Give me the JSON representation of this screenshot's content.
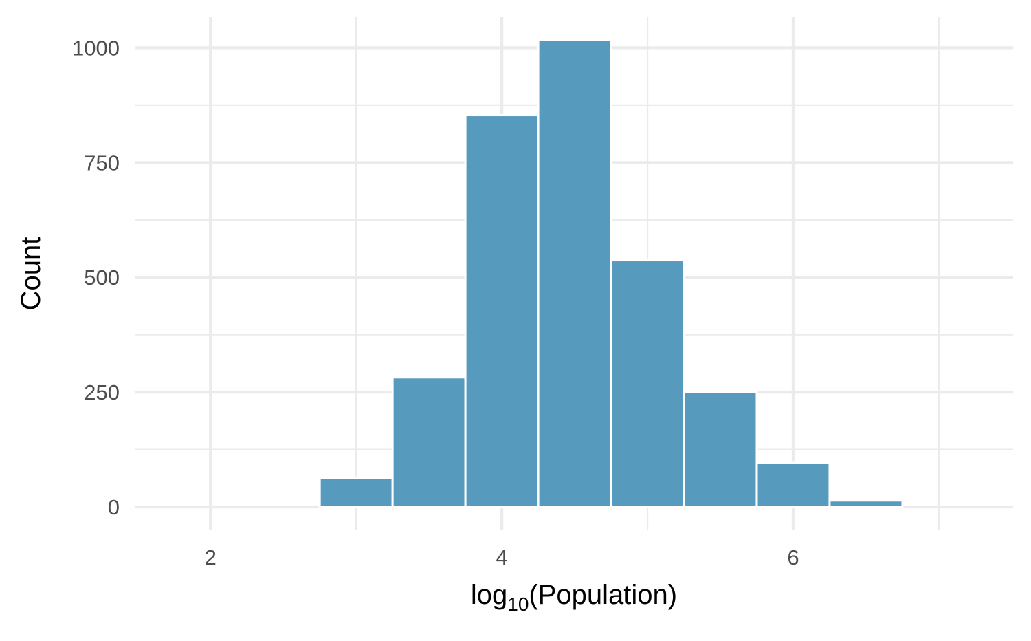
{
  "chart_data": {
    "type": "bar",
    "title": "",
    "xlabel": {
      "base": "log",
      "subscript": "10",
      "rest": "(Population)"
    },
    "ylabel": "Count",
    "bin_width": 0.5,
    "bins": [
      {
        "x_start": 1.75,
        "x_end": 2.25,
        "count": 0
      },
      {
        "x_start": 2.25,
        "x_end": 2.75,
        "count": 0
      },
      {
        "x_start": 2.75,
        "x_end": 3.25,
        "count": 63
      },
      {
        "x_start": 3.25,
        "x_end": 3.75,
        "count": 282
      },
      {
        "x_start": 3.75,
        "x_end": 4.25,
        "count": 853
      },
      {
        "x_start": 4.25,
        "x_end": 4.75,
        "count": 1017
      },
      {
        "x_start": 4.75,
        "x_end": 5.25,
        "count": 537
      },
      {
        "x_start": 5.25,
        "x_end": 5.75,
        "count": 250
      },
      {
        "x_start": 5.75,
        "x_end": 6.25,
        "count": 96
      },
      {
        "x_start": 6.25,
        "x_end": 6.75,
        "count": 14
      },
      {
        "x_start": 6.75,
        "x_end": 7.25,
        "count": 0
      }
    ],
    "xlim": [
      1.48,
      7.51
    ],
    "ylim": [
      -50.8,
      1068
    ],
    "x_ticks": [
      {
        "value": 2,
        "label": "2"
      },
      {
        "value": 4,
        "label": "4"
      },
      {
        "value": 6,
        "label": "6"
      }
    ],
    "x_minor_ticks": [
      3,
      5,
      7
    ],
    "y_ticks": [
      {
        "value": 0,
        "label": "0"
      },
      {
        "value": 250,
        "label": "250"
      },
      {
        "value": 500,
        "label": "500"
      },
      {
        "value": 750,
        "label": "750"
      },
      {
        "value": 1000,
        "label": "1000"
      }
    ],
    "y_minor_ticks": [
      125,
      375,
      625,
      875
    ],
    "grid": true,
    "colors": {
      "bar_fill": "#569bbd",
      "bar_outline": "#ffffff",
      "grid": "#ebebeb",
      "tick_text": "#4d4d4d",
      "axis_title": "#000000",
      "background": "#ffffff"
    }
  }
}
